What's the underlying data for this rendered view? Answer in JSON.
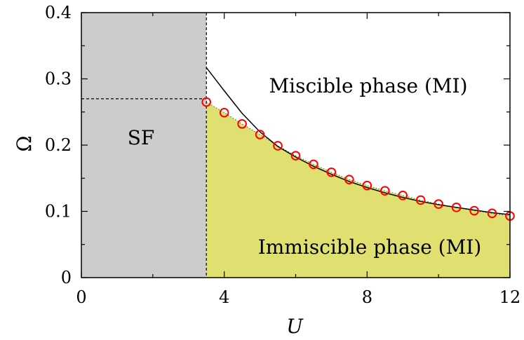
{
  "chart_data": {
    "type": "scatter",
    "xlabel": "U",
    "ylabel": "Ω",
    "xlim": [
      0,
      12
    ],
    "ylim": [
      0,
      0.4
    ],
    "x_ticks": [
      "0",
      "4",
      "8",
      "12"
    ],
    "y_ticks": [
      "0",
      "0.1",
      "0.2",
      "0.3",
      "0.4"
    ],
    "grid": false,
    "colors": {
      "sf_region": "#cccccc",
      "immiscible_region": "#e0e070",
      "markers": "#ff0000",
      "line": "#000000"
    },
    "sf_boundary": {
      "U": 3.5,
      "Omega": 0.27
    },
    "regions": [
      {
        "name": "SF",
        "label": "SF"
      },
      {
        "name": "miscible",
        "label": "Miscible phase (MI)"
      },
      {
        "name": "immiscible",
        "label": "Immiscible phase (MI)"
      }
    ],
    "series": [
      {
        "type": "scatter",
        "x": [
          3.5,
          4.0,
          4.5,
          5.0,
          5.5,
          6.0,
          6.5,
          7.0,
          7.5,
          8.0,
          8.5,
          9.0,
          9.5,
          10.0,
          10.5,
          11.0,
          11.5,
          12.0
        ],
        "y": [
          0.265,
          0.249,
          0.232,
          0.216,
          0.199,
          0.184,
          0.171,
          0.159,
          0.148,
          0.139,
          0.131,
          0.124,
          0.117,
          0.111,
          0.106,
          0.101,
          0.097,
          0.093
        ]
      },
      {
        "type": "line",
        "x": [
          3.5,
          4.0,
          4.5,
          5.0,
          5.5,
          6.0,
          6.5,
          7.0,
          7.5,
          8.0,
          8.5,
          9.0,
          9.5,
          10.0,
          10.5,
          11.0,
          11.5,
          12.0
        ],
        "y": [
          0.317,
          0.282,
          0.248,
          0.22,
          0.198,
          0.182,
          0.168,
          0.156,
          0.145,
          0.136,
          0.128,
          0.121,
          0.115,
          0.11,
          0.106,
          0.102,
          0.098,
          0.095
        ]
      }
    ]
  }
}
